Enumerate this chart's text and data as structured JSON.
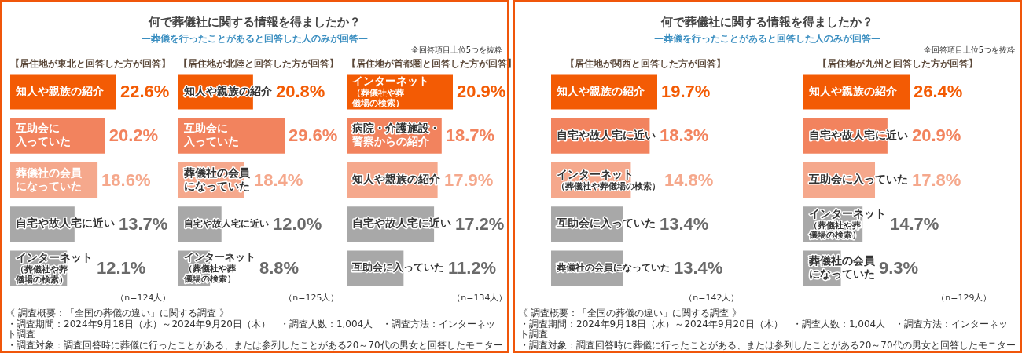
{
  "chart_data": [
    {
      "type": "other",
      "title": "何で葬儀社に関する情報を得ましたか？",
      "subtitle": "—葬儀を行ったことがあると回答した人のみが回答—",
      "annotations": [
        "全回答項目上位5つを抜粋"
      ]
    },
    {
      "type": "bar",
      "orientation": "horizontal",
      "title": "【居住地が東北と回答した方が回答】",
      "categories": [
        "知人や親族の紹介",
        "互助会に入っていた",
        "葬儀社の会員になっていた",
        "自宅や故人宅に近い",
        "インターネット（葬儀社や葬儀場の検索）"
      ],
      "values": [
        22.6,
        20.2,
        18.6,
        13.7,
        12.1
      ],
      "colors": [
        "#f35b04",
        "#f2835e",
        "#f5a88c",
        "#a8a8a8",
        "#a8a8a8"
      ],
      "value_labels": [
        "22.6%",
        "20.2%",
        "18.6%",
        "13.7%",
        "12.1%"
      ],
      "annotations": [
        "（n=124人）"
      ]
    },
    {
      "type": "bar",
      "orientation": "horizontal",
      "title": "【居住地が北陸と回答した方が回答】",
      "categories": [
        "知人や親族の紹介",
        "互助会に入っていた",
        "葬儀社の会員になっていた",
        "自宅や故人宅に近い",
        "インターネット（葬儀社や葬儀場の検索）"
      ],
      "values": [
        20.8,
        29.6,
        18.4,
        12.0,
        8.8
      ],
      "colors": [
        "#f35b04",
        "#f2835e",
        "#f5a88c",
        "#a8a8a8",
        "#a8a8a8"
      ],
      "value_labels": [
        "20.8%",
        "29.6%",
        "18.4%",
        "12.0%",
        "8.8%"
      ],
      "annotations": [
        "（n=125人）"
      ]
    },
    {
      "type": "bar",
      "orientation": "horizontal",
      "title": "【居住地が首都圏と回答した方が回答】",
      "categories": [
        "インターネット（葬儀社や葬儀場の検索）",
        "病院・介護施設・警察からの紹介",
        "知人や親族の紹介",
        "自宅や故人宅に近い",
        "互助会に入っていた"
      ],
      "values": [
        20.9,
        18.7,
        17.9,
        17.2,
        11.2
      ],
      "colors": [
        "#f35b04",
        "#f2835e",
        "#f5a88c",
        "#a8a8a8",
        "#a8a8a8"
      ],
      "value_labels": [
        "20.9%",
        "18.7%",
        "17.9%",
        "17.2%",
        "11.2%"
      ],
      "annotations": [
        "（n=134人）"
      ]
    },
    {
      "type": "other",
      "annotations": [
        "《 調査概要：「全国の葬儀の違い」に関する調査 》",
        "・調査期間：2024年9月18日（水）～2024年9月20日（木）　・調査人数：1,004人　・調査方法：インターネット調査",
        "・調査対象：調査回答時に葬儀に行ったことがある、または参列したことがある20～70代の男女と回答したモニター"
      ]
    },
    {
      "type": "other",
      "title": "何で葬儀社に関する情報を得ましたか？",
      "subtitle": "—葬儀を行ったことがあると回答した人のみが回答—",
      "annotations": [
        "全回答項目上位5つを抜粋"
      ]
    },
    {
      "type": "bar",
      "orientation": "horizontal",
      "title": "【居住地が関西と回答した方が回答】",
      "categories": [
        "知人や親族の紹介",
        "自宅や故人宅に近い",
        "インターネット（葬儀社や葬儀場の検索）",
        "互助会に入っていた",
        "葬儀社の会員になっていた"
      ],
      "values": [
        19.7,
        18.3,
        14.8,
        13.4,
        13.4
      ],
      "colors": [
        "#f35b04",
        "#f2835e",
        "#f5a88c",
        "#a8a8a8",
        "#a8a8a8"
      ],
      "value_labels": [
        "19.7%",
        "18.3%",
        "14.8%",
        "13.4%",
        "13.4%"
      ],
      "annotations": [
        "（n=142人）"
      ]
    },
    {
      "type": "bar",
      "orientation": "horizontal",
      "title": "【居住地が九州と回答した方が回答】",
      "categories": [
        "知人や親族の紹介",
        "自宅や故人宅に近い",
        "互助会に入っていた",
        "インターネット（葬儀社や葬儀場の検索）",
        "葬儀社の会員になっていた"
      ],
      "values": [
        26.4,
        20.9,
        17.8,
        14.7,
        9.3
      ],
      "colors": [
        "#f35b04",
        "#f2835e",
        "#f5a88c",
        "#a8a8a8",
        "#a8a8a8"
      ],
      "value_labels": [
        "26.4%",
        "20.9%",
        "17.8%",
        "14.7%",
        "9.3%"
      ],
      "annotations": [
        "（n=129人）"
      ]
    },
    {
      "type": "other",
      "annotations": [
        "《 調査概要：「全国の葬儀の違い」に関する調査 》",
        "・調査期間：2024年9月18日（水）～2024年9月20日（木）　・調査人数：1,004人　・調査方法：インターネット調査",
        "・調査対象：調査回答時に葬儀に行ったことがある、または参列したことがある20～70代の男女と回答したモニター"
      ]
    }
  ]
}
